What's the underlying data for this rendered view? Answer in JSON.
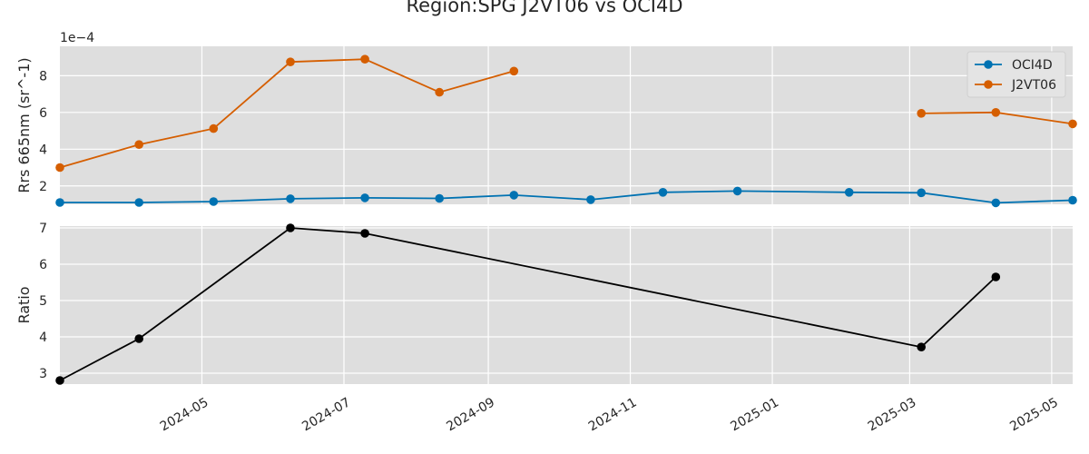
{
  "title": "Region:SPG J2VT06 vs OCI4D",
  "chart_data": [
    {
      "type": "line",
      "ylabel": "Rrs 665nm (sr^-1)",
      "offset_label": "1e−4",
      "ylim": [
        1.0,
        9.6
      ],
      "yticks": [
        2,
        4,
        6,
        8
      ],
      "ytick_labels": [
        "2",
        "4",
        "6",
        "8"
      ],
      "grid": true,
      "legend_position": "top-right",
      "series": [
        {
          "name": "OCI4D",
          "color": "#0072B2",
          "x": [
            "2024-03-01",
            "2024-04-04",
            "2024-05-06",
            "2024-06-08",
            "2024-07-10",
            "2024-08-11",
            "2024-09-12",
            "2024-10-15",
            "2024-11-15",
            "2024-12-17",
            "2025-02-03",
            "2025-03-06",
            "2025-04-07",
            "2025-05-10"
          ],
          "y": [
            1.1,
            1.1,
            1.15,
            1.3,
            1.35,
            1.32,
            1.5,
            1.25,
            1.65,
            1.72,
            1.65,
            1.63,
            1.08,
            1.22
          ]
        },
        {
          "name": "J2VT06",
          "color": "#D55E00",
          "x": [
            "2024-03-01",
            "2024-04-04",
            "2024-05-06",
            "2024-06-08",
            "2024-07-10",
            "2024-08-11",
            "2024-09-12",
            "2024-10-15",
            "2024-11-15",
            "2024-12-17",
            "2025-02-03",
            "2025-03-06",
            "2025-04-07",
            "2025-05-10"
          ],
          "y": [
            3.0,
            4.25,
            5.12,
            8.75,
            8.9,
            7.1,
            8.25,
            null,
            null,
            null,
            null,
            5.95,
            6.0,
            5.38
          ]
        }
      ]
    },
    {
      "type": "line",
      "ylabel": "Ratio",
      "ylim": [
        2.7,
        7.05
      ],
      "yticks": [
        3,
        4,
        5,
        6,
        7
      ],
      "ytick_labels": [
        "3",
        "4",
        "5",
        "6",
        "7"
      ],
      "grid": true,
      "series": [
        {
          "color": "#000000",
          "x": [
            "2024-03-01",
            "2024-04-04",
            "2024-06-08",
            "2024-07-10",
            "2025-03-06",
            "2025-04-07"
          ],
          "y": [
            2.8,
            3.95,
            7.0,
            6.85,
            3.72,
            5.65
          ]
        }
      ]
    }
  ],
  "x_axis": {
    "range": [
      "2024-03-01",
      "2025-05-10"
    ],
    "ticks": [
      "2024-05-01",
      "2024-07-01",
      "2024-09-01",
      "2024-11-01",
      "2025-01-01",
      "2025-03-01",
      "2025-05-01"
    ],
    "tick_labels": [
      "2024-05",
      "2024-07",
      "2024-09",
      "2024-11",
      "2025-01",
      "2025-03",
      "2025-05"
    ]
  }
}
